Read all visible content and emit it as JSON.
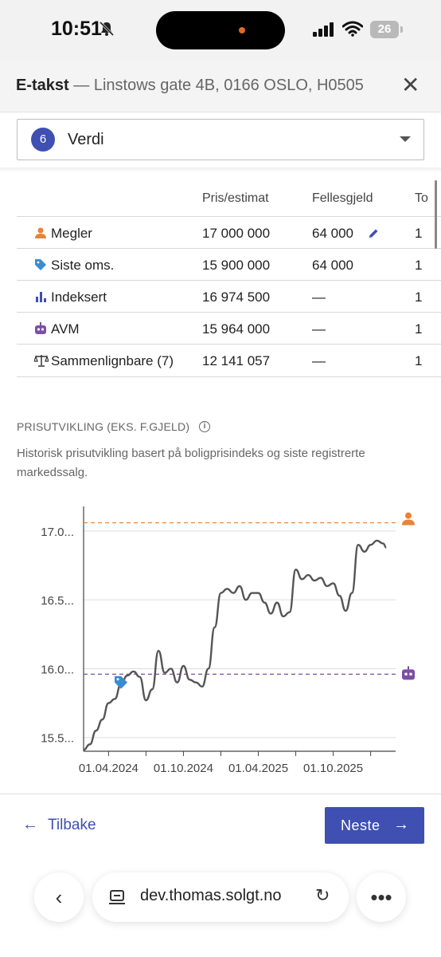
{
  "status_bar": {
    "time": "10:51",
    "battery": "26"
  },
  "header": {
    "title": "E-takst",
    "subtitle": "— Linstows gate 4B, 0166 OSLO, H0505",
    "close_icon": "close-icon"
  },
  "step": {
    "number": "6",
    "label": "Verdi"
  },
  "table": {
    "columns": [
      "Pris/estimat",
      "Fellesgjeld",
      "To"
    ],
    "rows": [
      {
        "icon": "person-icon",
        "label": "Megler",
        "price": "17 000 000",
        "fellesgjeld": "64 000",
        "total": "1"
      },
      {
        "icon": "tag-icon",
        "label": "Siste oms.",
        "price": "15 900 000",
        "fellesgjeld": "64 000",
        "total": "1"
      },
      {
        "icon": "bar-chart-icon",
        "label": "Indeksert",
        "price": "16 974 500",
        "fellesgjeld": "—",
        "total": "1"
      },
      {
        "icon": "robot-icon",
        "label": "AVM",
        "price": "15 964 000",
        "fellesgjeld": "—",
        "total": "1"
      },
      {
        "icon": "scale-icon",
        "label": "Sammenlignbare (7)",
        "price": "12 141 057",
        "fellesgjeld": "—",
        "total": "1"
      }
    ]
  },
  "section": {
    "title": "PRISUTVIKLING (EKS. F.GJELD)",
    "description": "Historisk prisutvikling basert på boligprisindeks og siste registrerte markedssalg."
  },
  "chart_data": {
    "type": "line",
    "title": "",
    "xlabel": "",
    "ylabel": "",
    "y_ticks": [
      "17.0...",
      "16.5...",
      "16.0...",
      "15.5..."
    ],
    "y_tick_values": [
      17.0,
      16.5,
      16.0,
      15.5
    ],
    "x_ticks": [
      "01.04.2024",
      "01.10.2024",
      "01.04.2025",
      "01.10.2025"
    ],
    "x_tick_values": [
      0.08,
      0.32,
      0.56,
      0.8
    ],
    "ylim": [
      15.4,
      17.15
    ],
    "xlim": [
      0,
      1
    ],
    "grid": true,
    "reference_lines": [
      {
        "name": "Megler",
        "value": 17.06,
        "color": "#e8833a",
        "icon": "person-icon"
      },
      {
        "name": "AVM",
        "value": 15.96,
        "color": "#7b4fa6",
        "icon": "robot-icon"
      }
    ],
    "marker": {
      "name": "Siste oms.",
      "x": 0.12,
      "y": 15.9,
      "icon": "tag-icon",
      "color": "#3b8bd0"
    },
    "series": [
      {
        "color": "#555555",
        "points": [
          [
            0.0,
            15.41
          ],
          [
            0.02,
            15.45
          ],
          [
            0.04,
            15.55
          ],
          [
            0.06,
            15.63
          ],
          [
            0.08,
            15.75
          ],
          [
            0.1,
            15.78
          ],
          [
            0.12,
            15.89
          ],
          [
            0.14,
            15.95
          ],
          [
            0.16,
            15.98
          ],
          [
            0.18,
            15.94
          ],
          [
            0.2,
            15.77
          ],
          [
            0.22,
            15.85
          ],
          [
            0.24,
            16.13
          ],
          [
            0.26,
            15.97
          ],
          [
            0.28,
            16.0
          ],
          [
            0.3,
            15.9
          ],
          [
            0.32,
            16.02
          ],
          [
            0.34,
            15.92
          ],
          [
            0.36,
            15.9
          ],
          [
            0.38,
            15.87
          ],
          [
            0.4,
            16.0
          ],
          [
            0.42,
            16.3
          ],
          [
            0.44,
            16.55
          ],
          [
            0.46,
            16.58
          ],
          [
            0.48,
            16.55
          ],
          [
            0.5,
            16.6
          ],
          [
            0.52,
            16.5
          ],
          [
            0.54,
            16.55
          ],
          [
            0.56,
            16.55
          ],
          [
            0.58,
            16.48
          ],
          [
            0.6,
            16.4
          ],
          [
            0.62,
            16.48
          ],
          [
            0.64,
            16.38
          ],
          [
            0.66,
            16.41
          ],
          [
            0.68,
            16.72
          ],
          [
            0.7,
            16.65
          ],
          [
            0.72,
            16.68
          ],
          [
            0.74,
            16.64
          ],
          [
            0.76,
            16.66
          ],
          [
            0.78,
            16.6
          ],
          [
            0.8,
            16.62
          ],
          [
            0.82,
            16.53
          ],
          [
            0.84,
            16.42
          ],
          [
            0.86,
            16.55
          ],
          [
            0.88,
            16.9
          ],
          [
            0.9,
            16.85
          ],
          [
            0.92,
            16.9
          ],
          [
            0.94,
            16.93
          ],
          [
            0.96,
            16.91
          ],
          [
            0.97,
            16.88
          ]
        ]
      }
    ]
  },
  "footer": {
    "back_label": "Tilbake",
    "next_label": "Neste"
  },
  "browser": {
    "url": "dev.thomas.solgt.no"
  },
  "colors": {
    "accent": "#3f4fb2",
    "megler": "#e8833a",
    "tag": "#3b8bd0",
    "avm": "#7b4fa6"
  }
}
